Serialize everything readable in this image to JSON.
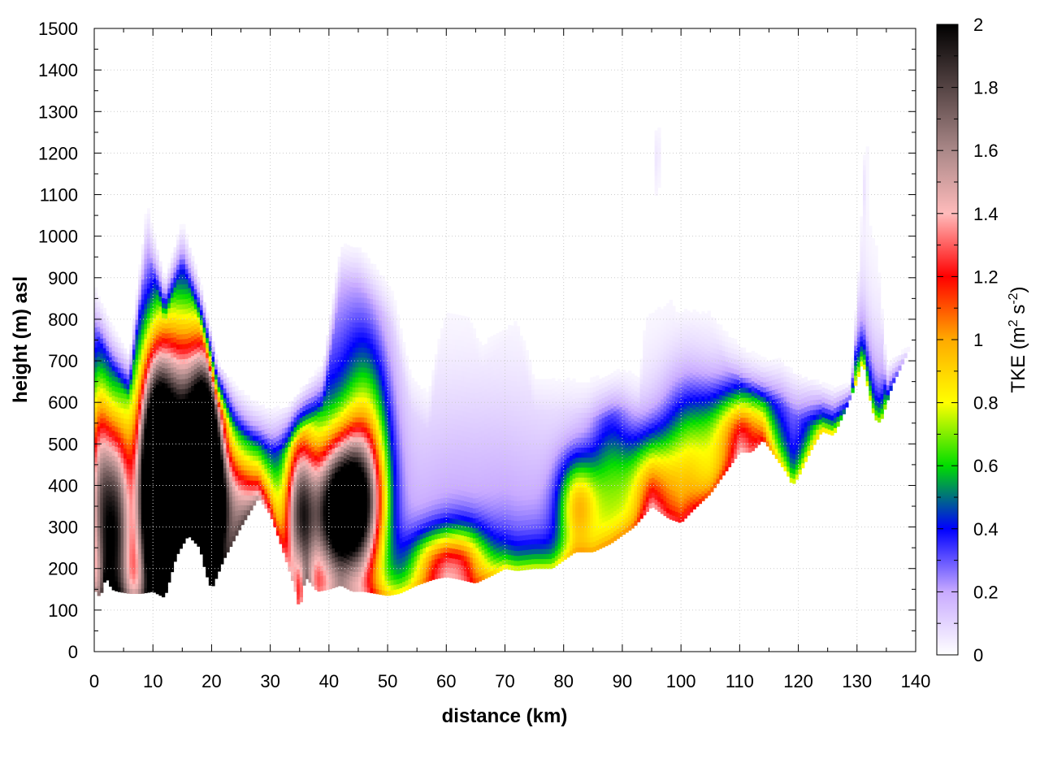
{
  "chart_data": {
    "type": "heatmap",
    "title": "",
    "xlabel": "distance (km)",
    "ylabel": "height (m) asl",
    "xlim": [
      0,
      140
    ],
    "ylim": [
      0,
      1500
    ],
    "x_ticks": [
      0,
      10,
      20,
      30,
      40,
      50,
      60,
      70,
      80,
      90,
      100,
      110,
      120,
      130,
      140
    ],
    "y_ticks": [
      0,
      100,
      200,
      300,
      400,
      500,
      600,
      700,
      800,
      900,
      1000,
      1100,
      1200,
      1300,
      1400,
      1500
    ],
    "grid": true,
    "colorbar": {
      "title_prefix": "TKE (m",
      "sup1": "2",
      "title_mid": " s",
      "sup2": "-2",
      "title_suffix": ")",
      "range": [
        0,
        2
      ],
      "ticks": [
        0,
        0.2,
        0.4,
        0.6,
        0.8,
        1,
        1.2,
        1.4,
        1.6,
        1.8,
        2
      ],
      "tick_labels": [
        "0",
        "0.2",
        "0.4",
        "0.6",
        "0.8",
        "1",
        "1.2",
        "1.4",
        "1.6",
        "1.8",
        "2"
      ],
      "colormap": [
        [
          0.0,
          "#ffffff"
        ],
        [
          0.1,
          "#c8aaff"
        ],
        [
          0.2,
          "#0000ff"
        ],
        [
          0.3,
          "#00dd00"
        ],
        [
          0.4,
          "#ffff00"
        ],
        [
          0.5,
          "#ffaa00"
        ],
        [
          0.6,
          "#ff0000"
        ],
        [
          0.7,
          "#ffbbbb"
        ],
        [
          0.8,
          "#aa8888"
        ],
        [
          1.0,
          "#000000"
        ]
      ]
    },
    "terrain_surface": {
      "x": [
        0,
        1,
        2,
        3,
        4,
        6,
        8,
        10,
        12,
        14,
        16,
        18,
        19,
        20,
        22,
        25,
        28,
        30,
        32,
        34,
        35,
        36,
        38,
        40,
        42,
        44,
        46,
        48,
        50,
        52,
        55,
        58,
        60,
        62,
        65,
        68,
        70,
        72,
        75,
        78,
        80,
        82,
        85,
        88,
        90,
        92,
        95,
        98,
        100,
        102,
        105,
        108,
        110,
        112,
        114,
        116,
        118,
        119,
        120,
        122,
        124,
        126,
        128,
        130,
        131,
        132,
        133,
        134,
        136,
        138,
        139
      ],
      "height": [
        150,
        130,
        180,
        150,
        145,
        140,
        140,
        145,
        130,
        230,
        280,
        250,
        190,
        150,
        220,
        300,
        370,
        330,
        250,
        160,
        100,
        180,
        145,
        150,
        160,
        145,
        145,
        140,
        135,
        140,
        160,
        175,
        180,
        175,
        165,
        185,
        200,
        195,
        200,
        200,
        220,
        240,
        240,
        260,
        280,
        300,
        350,
        320,
        310,
        340,
        380,
        440,
        480,
        480,
        510,
        470,
        430,
        400,
        420,
        480,
        530,
        520,
        580,
        650,
        700,
        620,
        560,
        550,
        640,
        700,
        730
      ]
    },
    "data_mask": {
      "x": [
        0,
        3,
        6,
        9,
        12,
        15,
        18,
        21,
        24,
        27,
        30,
        33,
        36,
        39,
        42,
        45,
        48,
        51,
        54,
        57,
        60,
        63,
        66,
        69,
        72,
        75,
        78,
        81,
        84,
        87,
        90,
        93,
        96,
        99,
        102,
        105,
        108,
        111,
        114,
        117,
        120,
        123,
        126,
        129,
        132,
        135,
        138,
        140
      ],
      "top_height": [
        900,
        800,
        720,
        1100,
        900,
        1050,
        900,
        700,
        650,
        620,
        600,
        600,
        650,
        700,
        1000,
        1000,
        950,
        900,
        700,
        650,
        950,
        950,
        800,
        850,
        900,
        700,
        700,
        700,
        680,
        680,
        700,
        700,
        1350,
        900,
        900,
        900,
        800,
        750,
        720,
        720,
        680,
        660,
        640,
        650,
        1400,
        700,
        730,
        740
      ]
    },
    "features": [
      {
        "x": 14.5,
        "z": 450,
        "sx": 5.0,
        "sz": 260,
        "tke": 2.0
      },
      {
        "x": 16.0,
        "z": 330,
        "sx": 3.0,
        "sz": 120,
        "tke": 1.8
      },
      {
        "x": 19.0,
        "z": 420,
        "sx": 1.8,
        "sz": 180,
        "tke": 2.0
      },
      {
        "x": 10.5,
        "z": 380,
        "sx": 2.0,
        "sz": 200,
        "tke": 1.9
      },
      {
        "x": 3.5,
        "z": 300,
        "sx": 2.0,
        "sz": 200,
        "tke": 1.6
      },
      {
        "x": 0.5,
        "z": 400,
        "sx": 1.5,
        "sz": 220,
        "tke": 1.0
      },
      {
        "x": 25.0,
        "z": 350,
        "sx": 4.5,
        "sz": 110,
        "tke": 0.95
      },
      {
        "x": 35.0,
        "z": 330,
        "sx": 1.8,
        "sz": 150,
        "tke": 1.25
      },
      {
        "x": 40.5,
        "z": 330,
        "sx": 3.0,
        "sz": 120,
        "tke": 1.3
      },
      {
        "x": 44.5,
        "z": 350,
        "sx": 3.0,
        "sz": 120,
        "tke": 1.35
      },
      {
        "x": 46.5,
        "z": 470,
        "sx": 3.0,
        "sz": 220,
        "tke": 0.7
      },
      {
        "x": 38.0,
        "z": 500,
        "sx": 4.0,
        "sz": 250,
        "tke": 0.35
      },
      {
        "x": 58.0,
        "z": 220,
        "sx": 3.0,
        "sz": 50,
        "tke": 0.5
      },
      {
        "x": 63.0,
        "z": 220,
        "sx": 3.0,
        "sz": 60,
        "tke": 0.6
      },
      {
        "x": 65.0,
        "z": 400,
        "sx": 15.0,
        "sz": 200,
        "tke": 0.12
      },
      {
        "x": 82.5,
        "z": 360,
        "sx": 2.5,
        "sz": 80,
        "tke": 0.7
      },
      {
        "x": 88.0,
        "z": 420,
        "sx": 2.5,
        "sz": 150,
        "tke": 0.4
      },
      {
        "x": 94.5,
        "z": 400,
        "sx": 3.0,
        "sz": 90,
        "tke": 0.65
      },
      {
        "x": 100.5,
        "z": 420,
        "sx": 3.0,
        "sz": 150,
        "tke": 0.55
      },
      {
        "x": 107.0,
        "z": 500,
        "sx": 4.0,
        "sz": 100,
        "tke": 0.45
      },
      {
        "x": 111.0,
        "z": 540,
        "sx": 3.0,
        "sz": 60,
        "tke": 0.5
      },
      {
        "x": 118.0,
        "z": 550,
        "sx": 6.0,
        "sz": 120,
        "tke": 0.15
      },
      {
        "x": 127.0,
        "z": 620,
        "sx": 4.0,
        "sz": 100,
        "tke": 0.18
      },
      {
        "x": 130.8,
        "z": 1200,
        "sx": 0.4,
        "sz": 80,
        "tke": 0.2
      },
      {
        "x": 95.5,
        "z": 1230,
        "sx": 0.8,
        "sz": 80,
        "tke": 0.07
      },
      {
        "x": 43.0,
        "z": 850,
        "sx": 3.0,
        "sz": 150,
        "tke": 0.08
      },
      {
        "x": 9.0,
        "z": 1100,
        "sx": 0.5,
        "sz": 80,
        "tke": 0.06
      }
    ]
  }
}
